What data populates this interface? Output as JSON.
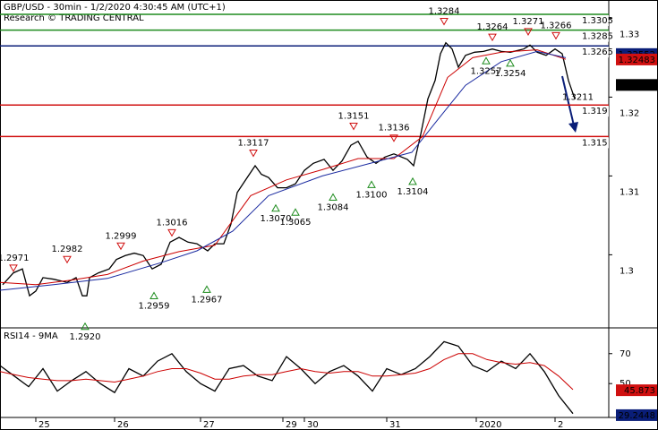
{
  "chart_data": [
    {
      "type": "line",
      "title": "GBP/USD - 30min - 1/2/2020 4:30:45 AM (UTC+1)",
      "subtitle": "Research © TRADING CENTRAL",
      "xlim": [
        0,
        170
      ],
      "ylim": [
        1.29084,
        1.33232
      ],
      "yticks": [
        1.3,
        1.31,
        1.32,
        1.33
      ],
      "series": [
        {
          "name": "Price",
          "color": "#000000",
          "x": [
            0.75,
            3.75,
            6.25,
            8.25,
            10,
            12,
            15,
            18.75,
            21.25,
            23,
            24.25,
            25,
            27.5,
            30.5,
            32.5,
            35,
            37.5,
            40,
            42.5,
            45,
            47.5,
            50,
            52.5,
            55,
            58,
            60,
            62.5,
            64.5,
            66.25,
            68.75,
            71.25,
            73,
            75,
            77.5,
            80,
            82.5,
            85,
            87.5,
            90.5,
            93,
            95.5,
            98,
            100,
            102.5,
            105,
            107.5,
            110,
            113.75,
            115.5,
            117.5,
            119.5,
            121.5,
            123,
            124.5,
            126.25,
            128,
            130,
            132.5,
            135,
            137.5,
            140,
            142.5,
            146.25,
            148,
            150,
            152.5,
            155,
            157,
            158.75,
            160.5
          ],
          "values": [
            1.2962,
            1.2977,
            1.2982,
            1.2948,
            1.2954,
            1.2971,
            1.2969,
            1.2965,
            1.2971,
            1.2948,
            1.2948,
            1.2971,
            1.2977,
            1.2982,
            1.2994,
            1.2999,
            1.3002,
            1.2999,
            1.2982,
            1.2988,
            1.3016,
            1.3022,
            1.3016,
            1.3014,
            1.3005,
            1.3014,
            1.3014,
            1.3039,
            1.3079,
            1.3096,
            1.3113,
            1.3102,
            1.3098,
            1.3085,
            1.3085,
            1.309,
            1.3107,
            1.3116,
            1.3121,
            1.3107,
            1.3119,
            1.3139,
            1.3144,
            1.3124,
            1.3116,
            1.3124,
            1.3128,
            1.3121,
            1.3113,
            1.3153,
            1.3198,
            1.3221,
            1.3255,
            1.3269,
            1.3261,
            1.3238,
            1.3253,
            1.3257,
            1.3258,
            1.3261,
            1.3258,
            1.3257,
            1.3261,
            1.3266,
            1.3257,
            1.3253,
            1.3261,
            1.3255,
            1.3221,
            1.3198
          ]
        },
        {
          "name": "Fast MA",
          "color": "#cc0000",
          "x": [
            0,
            10,
            20,
            30,
            40,
            50,
            60,
            70,
            80,
            90,
            100,
            110,
            118,
            125,
            132,
            140,
            150,
            158
          ],
          "values": [
            1.2965,
            1.2962,
            1.2968,
            1.2975,
            1.2992,
            1.3004,
            1.3012,
            1.3075,
            1.3095,
            1.3108,
            1.3122,
            1.3122,
            1.315,
            1.3225,
            1.325,
            1.3257,
            1.326,
            1.3248
          ]
        },
        {
          "name": "Slow MA",
          "color": "#1a2aa0",
          "x": [
            0,
            15,
            30,
            45,
            55,
            65,
            75,
            90,
            105,
            115,
            122,
            130,
            140,
            150,
            158
          ],
          "values": [
            1.2955,
            1.2962,
            1.297,
            1.299,
            1.3005,
            1.303,
            1.3075,
            1.31,
            1.3118,
            1.313,
            1.317,
            1.3215,
            1.3245,
            1.3258,
            1.325
          ]
        }
      ],
      "levels": [
        {
          "value": 1.3305,
          "label": "1.3305",
          "color": "#1e8c1e"
        },
        {
          "value": 1.3285,
          "label": "1.3285",
          "color": "#1e8c1e"
        },
        {
          "value": 1.3265,
          "label": "1.3265",
          "color": "#0a1e78"
        },
        {
          "value": 1.319,
          "label": "1.319",
          "color": "#d01010"
        },
        {
          "value": 1.315,
          "label": "1.315",
          "color": "#d01010"
        }
      ],
      "price_boxes": [
        {
          "value": 1.32552,
          "label": "1.32552",
          "color": "#0a1e78"
        },
        {
          "value": 1.32483,
          "label": "1.32483",
          "color": "#d01010"
        },
        {
          "value": 1.3216,
          "label": "1.3216",
          "color": "#000000"
        }
      ],
      "pivots": [
        {
          "x": 3.75,
          "value": 1.2971,
          "label": "1.2971",
          "kind": "high"
        },
        {
          "x": 18.75,
          "value": 1.2982,
          "label": "1.2982",
          "kind": "high"
        },
        {
          "x": 33.75,
          "value": 1.2999,
          "label": "1.2999",
          "kind": "high"
        },
        {
          "x": 48,
          "value": 1.3016,
          "label": "1.3016",
          "kind": "high"
        },
        {
          "x": 70.75,
          "value": 1.3117,
          "label": "1.3117",
          "kind": "high"
        },
        {
          "x": 98.75,
          "value": 1.3151,
          "label": "1.3151",
          "kind": "high"
        },
        {
          "x": 110,
          "value": 1.3136,
          "label": "1.3136",
          "kind": "high"
        },
        {
          "x": 124,
          "value": 1.3284,
          "label": "1.3284",
          "kind": "high"
        },
        {
          "x": 137.5,
          "value": 1.3264,
          "label": "1.3264",
          "kind": "high"
        },
        {
          "x": 147.5,
          "value": 1.3271,
          "label": "1.3271",
          "kind": "high"
        },
        {
          "x": 155.25,
          "value": 1.3266,
          "label": "1.3266",
          "kind": "high"
        },
        {
          "x": 23.75,
          "value": 1.292,
          "label": "1.2920",
          "kind": "low"
        },
        {
          "x": 43,
          "value": 1.2959,
          "label": "1.2959",
          "kind": "low"
        },
        {
          "x": 57.75,
          "value": 1.2967,
          "label": "1.2967",
          "kind": "low"
        },
        {
          "x": 77,
          "value": 1.307,
          "label": "1.3070",
          "kind": "low"
        },
        {
          "x": 82.5,
          "value": 1.3065,
          "label": "1.3065",
          "kind": "low"
        },
        {
          "x": 93,
          "value": 1.3084,
          "label": "1.3084",
          "kind": "low"
        },
        {
          "x": 103.75,
          "value": 1.31,
          "label": "1.3100",
          "kind": "low"
        },
        {
          "x": 115.25,
          "value": 1.3104,
          "label": "1.3104",
          "kind": "low"
        },
        {
          "x": 135.75,
          "value": 1.3257,
          "label": "1.3257",
          "kind": "low"
        },
        {
          "x": 142.5,
          "value": 1.3254,
          "label": "1.3254",
          "kind": "low"
        },
        {
          "x": 160.5,
          "value": 1.3211,
          "label": "1.3211",
          "kind": "note"
        }
      ]
    },
    {
      "type": "line",
      "title": "RSI14 - 9MA",
      "xlim": [
        0,
        170
      ],
      "ylim": [
        28,
        86
      ],
      "yticks": [
        50,
        70
      ],
      "xticks": [
        {
          "value": 10,
          "label": "25"
        },
        {
          "value": 32,
          "label": "26"
        },
        {
          "value": 56,
          "label": "27"
        },
        {
          "value": 79,
          "label": "29"
        },
        {
          "value": 85,
          "label": "30"
        },
        {
          "value": 108,
          "label": "31"
        },
        {
          "value": 133,
          "label": "2020"
        },
        {
          "value": 155,
          "label": "2"
        }
      ],
      "series": [
        {
          "name": "RSI",
          "color": "#000000",
          "x": [
            0,
            4,
            8,
            12,
            16,
            20,
            24,
            28,
            32,
            36,
            40,
            44,
            48,
            52,
            56,
            60,
            64,
            68,
            72,
            76,
            80,
            84,
            88,
            92,
            96,
            100,
            104,
            108,
            112,
            116,
            120,
            124,
            128,
            132,
            136,
            140,
            144,
            148,
            152,
            156,
            160
          ],
          "values": [
            62,
            55,
            48,
            60,
            45,
            52,
            58,
            50,
            44,
            60,
            55,
            65,
            70,
            58,
            50,
            45,
            60,
            62,
            55,
            52,
            68,
            60,
            50,
            58,
            62,
            55,
            45,
            60,
            56,
            60,
            68,
            78,
            75,
            62,
            58,
            65,
            60,
            70,
            58,
            42,
            30
          ]
        },
        {
          "name": "RSI MA",
          "color": "#cc0000",
          "x": [
            0,
            4,
            8,
            12,
            16,
            20,
            24,
            28,
            32,
            36,
            40,
            44,
            48,
            52,
            56,
            60,
            64,
            68,
            72,
            76,
            80,
            84,
            88,
            92,
            96,
            100,
            104,
            108,
            112,
            116,
            120,
            124,
            128,
            132,
            136,
            140,
            144,
            148,
            152,
            156,
            160
          ],
          "values": [
            58,
            56,
            54,
            53,
            52,
            52,
            53,
            52,
            51,
            53,
            55,
            58,
            60,
            60,
            57,
            53,
            53,
            55,
            56,
            56,
            58,
            60,
            58,
            57,
            58,
            58,
            55,
            55,
            56,
            57,
            60,
            66,
            70,
            70,
            66,
            64,
            63,
            64,
            62,
            55,
            46
          ]
        }
      ],
      "price_boxes": [
        {
          "value": 45.873,
          "label": "45.873",
          "color": "#d01010"
        },
        {
          "value": 29.2448,
          "label": "29.2448",
          "color": "#0a1e78"
        }
      ]
    }
  ]
}
